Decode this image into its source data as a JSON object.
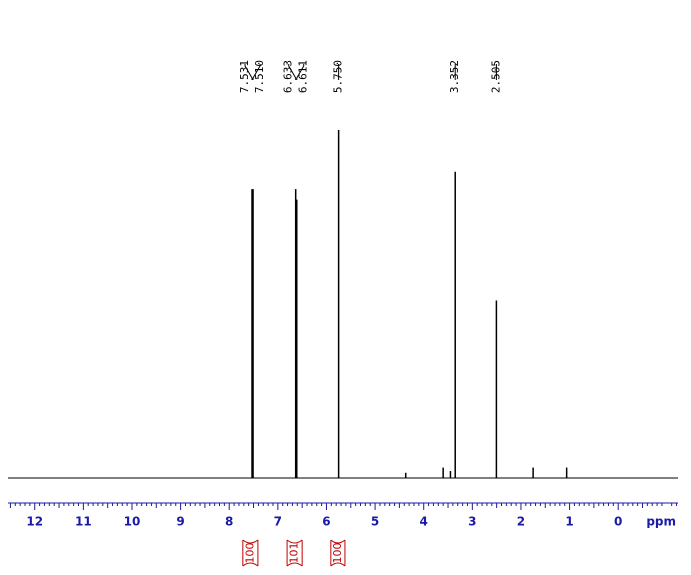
{
  "chart_data": {
    "type": "spectrum",
    "x_label": "ppm",
    "xlim": [
      12.55,
      -1.23
    ],
    "xticks": [
      12,
      11,
      10,
      9,
      8,
      7,
      6,
      5,
      4,
      3,
      2,
      1,
      0
    ],
    "ylim": [
      0,
      100
    ],
    "color": "#000000",
    "axis_color": "#1a1aa6",
    "integral_color": "#c00000",
    "x": [
      7.531,
      7.51,
      6.633,
      6.611,
      5.75,
      4.37,
      3.6,
      3.45,
      3.352,
      2.505,
      1.75,
      1.06
    ],
    "values": [
      83,
      83,
      83,
      80,
      100,
      1.5,
      3,
      2,
      88,
      51,
      3,
      3
    ],
    "peak_picks": [
      7.531,
      {
        "value": 7.51,
        "label": "7.510"
      },
      6.633,
      6.611,
      {
        "value": 5.75,
        "label": "5.750"
      },
      3.352,
      2.505
    ],
    "integrals": [
      {
        "from": 7.72,
        "to": 7.41,
        "value": 100
      },
      {
        "from": 6.81,
        "to": 6.5,
        "value": 101
      },
      {
        "from": 5.91,
        "to": 5.62,
        "value": 100
      }
    ]
  }
}
